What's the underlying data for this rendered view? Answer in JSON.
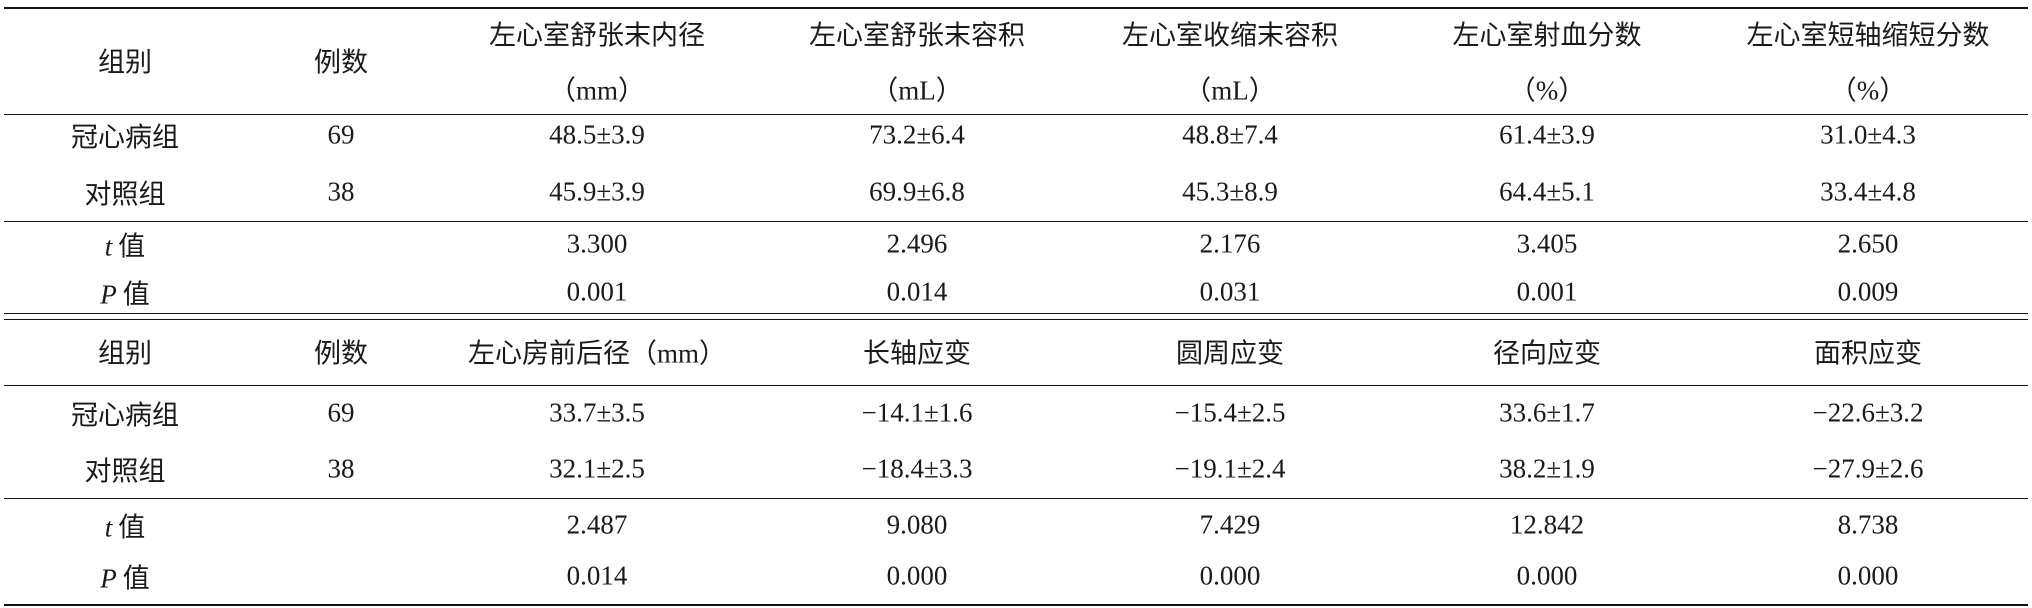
{
  "tables": [
    {
      "columns": [
        {
          "name": "组别"
        },
        {
          "name": "例数"
        },
        {
          "name": "左心室舒张末内径",
          "unit": "（mm）"
        },
        {
          "name": "左心室舒张末容积",
          "unit": "（mL）"
        },
        {
          "name": "左心室收缩末容积",
          "unit": "（mL）"
        },
        {
          "name": "左心室射血分数",
          "unit": "（%）"
        },
        {
          "name": "左心室短轴缩短分数",
          "unit": "（%）"
        }
      ],
      "rows": [
        [
          "冠心病组",
          "69",
          "48.5±3.9",
          "73.2±6.4",
          "48.8±7.4",
          "61.4±3.9",
          "31.0±4.3"
        ],
        [
          "对照组",
          "38",
          "45.9±3.9",
          "69.9±6.8",
          "45.3±8.9",
          "64.4±5.1",
          "33.4±4.8"
        ]
      ],
      "stats": [
        {
          "symbol": "t",
          "label": "值",
          "values": [
            "3.300",
            "2.496",
            "2.176",
            "3.405",
            "2.650"
          ]
        },
        {
          "symbol": "P",
          "label": "值",
          "values": [
            "0.001",
            "0.014",
            "0.031",
            "0.001",
            "0.009"
          ]
        }
      ]
    },
    {
      "columns": [
        {
          "name": "组别"
        },
        {
          "name": "例数"
        },
        {
          "name": "左心房前后径（mm）"
        },
        {
          "name": "长轴应变"
        },
        {
          "name": "圆周应变"
        },
        {
          "name": "径向应变"
        },
        {
          "name": "面积应变"
        }
      ],
      "rows": [
        [
          "冠心病组",
          "69",
          "33.7±3.5",
          "−14.1±1.6",
          "−15.4±2.5",
          "33.6±1.7",
          "−22.6±3.2"
        ],
        [
          "对照组",
          "38",
          "32.1±2.5",
          "−18.4±3.3",
          "−19.1±2.4",
          "38.2±1.9",
          "−27.9±2.6"
        ]
      ],
      "stats": [
        {
          "symbol": "t",
          "label": "值",
          "values": [
            "2.487",
            "9.080",
            "7.429",
            "12.842",
            "8.738"
          ]
        },
        {
          "symbol": "P",
          "label": "值",
          "values": [
            "0.014",
            "0.000",
            "0.000",
            "0.000",
            "0.000"
          ]
        }
      ]
    }
  ]
}
